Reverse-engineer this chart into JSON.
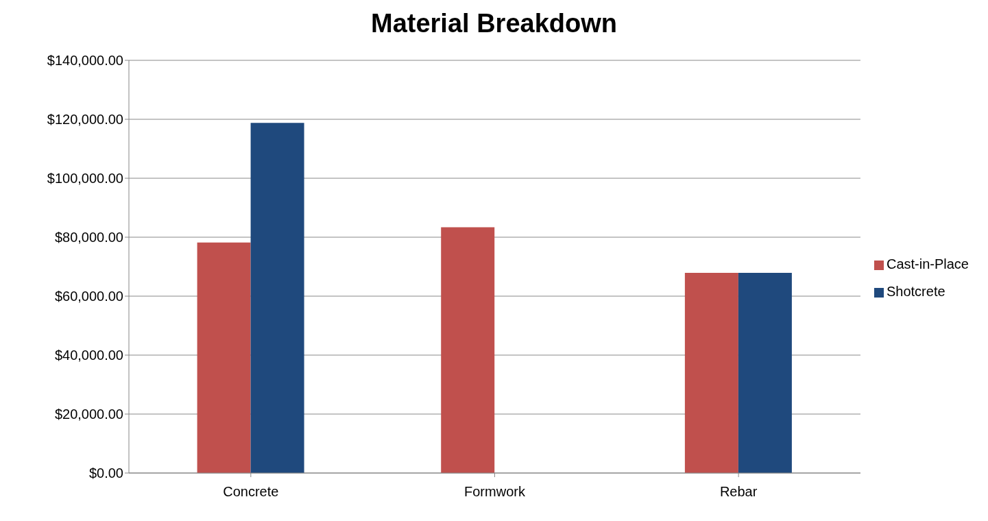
{
  "chart_data": {
    "type": "bar",
    "title": "Material Breakdown",
    "categories": [
      "Concrete",
      "Formwork",
      "Rebar"
    ],
    "series": [
      {
        "name": "Cast-in-Place",
        "color": "#c0504d",
        "values": [
          78200,
          83400,
          67900
        ]
      },
      {
        "name": "Shotcrete",
        "color": "#1f497d",
        "values": [
          118800,
          0,
          67900
        ]
      }
    ],
    "ylim": [
      0,
      140000
    ],
    "yticks": [
      {
        "value": 0,
        "label": "$0.00"
      },
      {
        "value": 20000,
        "label": "$20,000.00"
      },
      {
        "value": 40000,
        "label": "$40,000.00"
      },
      {
        "value": 60000,
        "label": "$60,000.00"
      },
      {
        "value": 80000,
        "label": "$80,000.00"
      },
      {
        "value": 100000,
        "label": "$100,000.00"
      },
      {
        "value": 120000,
        "label": "$120,000.00"
      },
      {
        "value": 140000,
        "label": "$140,000.00"
      }
    ],
    "grid": "y",
    "legend": "right"
  }
}
